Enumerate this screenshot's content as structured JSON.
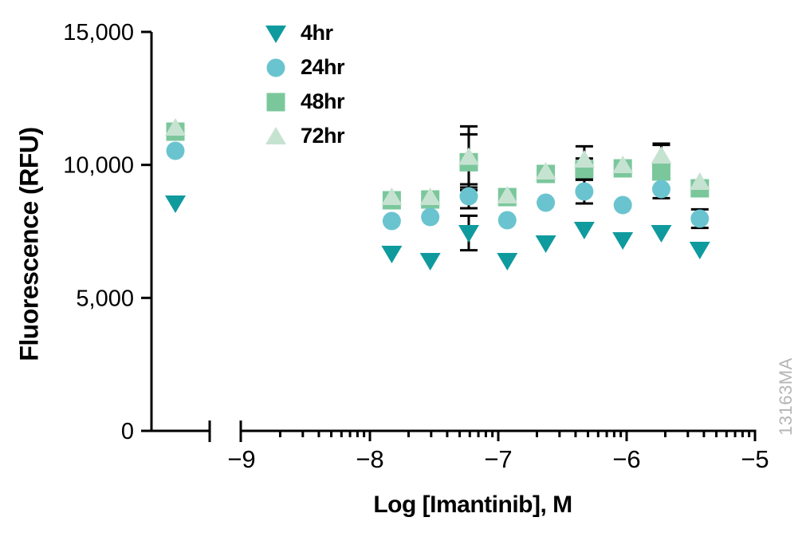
{
  "figure": {
    "watermark": "13163MA",
    "background": "#ffffff"
  },
  "chart_data": {
    "type": "scatter",
    "title": "",
    "xlabel": "Log [Imantinib], M",
    "ylabel": "Fluorescence (RFU)",
    "x_axis": {
      "scale": "log10",
      "tick_values": [
        -9,
        -8,
        -7,
        -6,
        -5
      ],
      "tick_labels": [
        "−9",
        "−8",
        "−7",
        "−6",
        "−5"
      ],
      "minor_ticks": "logarithmic (2-9 within each decade)",
      "axis_break": true,
      "control_column_note": "untreated control points plotted left of the axis break"
    },
    "y_axis": {
      "tick_values": [
        0,
        5000,
        10000,
        15000
      ],
      "tick_labels": [
        "0",
        "5,000",
        "10,000",
        "15,000"
      ],
      "range": [
        0,
        15000
      ]
    },
    "legend": {
      "position": "top-left inside plot",
      "items": [
        {
          "label": "4hr",
          "marker": "triangle-down",
          "color": "#0f9a9e"
        },
        {
          "label": "24hr",
          "marker": "circle",
          "color": "#6ac4cf"
        },
        {
          "label": "48hr",
          "marker": "square",
          "color": "#7bc79c"
        },
        {
          "label": "72hr",
          "marker": "triangle-up",
          "color": "#c6e3d1"
        }
      ]
    },
    "error_bar_color": "#000000",
    "x": [
      -7.83,
      -7.53,
      -7.23,
      -6.93,
      -6.63,
      -6.33,
      -6.03,
      -5.73,
      -5.43
    ],
    "series": [
      {
        "name": "4hr",
        "marker": "triangle-down",
        "color": "#0f9a9e",
        "control_y": 8550,
        "y": [
          6660,
          6390,
          7440,
          6390,
          7050,
          7560,
          7170,
          7440,
          6810
        ],
        "err": [
          0,
          0,
          650,
          0,
          0,
          0,
          0,
          0,
          0
        ]
      },
      {
        "name": "24hr",
        "marker": "circle",
        "color": "#6ac4cf",
        "control_y": 10530,
        "y": [
          7890,
          8040,
          8820,
          7920,
          8580,
          9000,
          8490,
          9090,
          7980
        ],
        "err": [
          0,
          0,
          450,
          0,
          0,
          450,
          0,
          0,
          350
        ]
      },
      {
        "name": "48hr",
        "marker": "square",
        "color": "#7bc79c",
        "control_y": 11250,
        "y": [
          8670,
          8700,
          10100,
          8790,
          9660,
          9840,
          9870,
          9750,
          9120
        ],
        "err": [
          0,
          0,
          1050,
          0,
          0,
          400,
          0,
          1000,
          0
        ]
      },
      {
        "name": "72hr",
        "marker": "triangle-up",
        "color": "#c6e3d1",
        "control_y": 11400,
        "y": [
          8790,
          8790,
          10300,
          8850,
          9750,
          10200,
          9990,
          10350,
          9360
        ],
        "err": [
          0,
          0,
          1150,
          0,
          0,
          500,
          0,
          450,
          0
        ]
      }
    ]
  }
}
